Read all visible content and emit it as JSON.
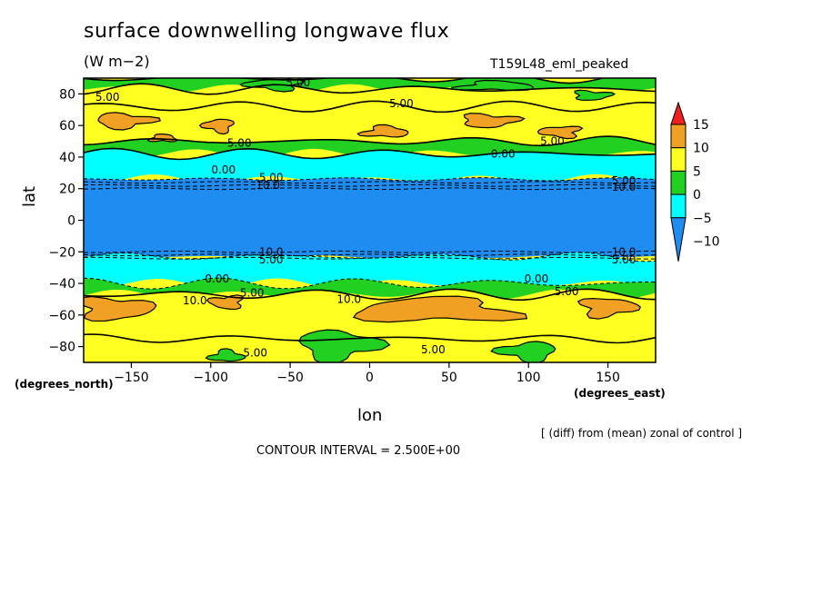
{
  "chart_data": {
    "type": "heatmap",
    "title": "surface downwelling longwave flux",
    "units": "(W m−2)",
    "run_id": "T159L48_eml_peaked",
    "xlabel": "lon",
    "ylabel": "lat",
    "x_unit_label": "(degrees_east)",
    "y_unit_label": "(degrees_north)",
    "xlim": [
      -180,
      180
    ],
    "ylim": [
      -90,
      90
    ],
    "x_ticks": [
      -150,
      -100,
      -50,
      0,
      50,
      100,
      150
    ],
    "y_ticks": [
      -80,
      -60,
      -40,
      -20,
      0,
      20,
      40,
      60,
      80
    ],
    "x_tick_labels": [
      "−150",
      "−100",
      "−50",
      "0",
      "50",
      "100",
      "150"
    ],
    "y_tick_labels": [
      "−80",
      "−60",
      "−40",
      "−20",
      "0",
      "20",
      "40",
      "60",
      "80"
    ],
    "colorbar": {
      "levels": [
        -10,
        -5,
        0,
        5,
        10,
        15
      ],
      "labels": [
        "−10",
        "−5",
        "0",
        "5",
        "10",
        "15"
      ],
      "colors": [
        "#1e8cf0",
        "#00ffff",
        "#22d022",
        "#ffff22",
        "#f0a022",
        "#f01e1e"
      ]
    },
    "zonal_bands": [
      {
        "lat_from": 83,
        "lat_to": 90,
        "value_range": "0 to 5"
      },
      {
        "lat_from": 72,
        "lat_to": 83,
        "value_range": "5 to 10"
      },
      {
        "lat_from": 50,
        "lat_to": 72,
        "value_range": "5 to 10 (patches 10 to 15)"
      },
      {
        "lat_from": 42,
        "lat_to": 50,
        "value_range": "0 to 5"
      },
      {
        "lat_from": 26,
        "lat_to": 42,
        "value_range": "-5 to 0"
      },
      {
        "lat_from": -23,
        "lat_to": 26,
        "value_range": "< -10"
      },
      {
        "lat_from": -40,
        "lat_to": -23,
        "value_range": "-5 to 0"
      },
      {
        "lat_from": -47,
        "lat_to": -40,
        "value_range": "0 to 5"
      },
      {
        "lat_from": -75,
        "lat_to": -47,
        "value_range": "5 to 10 (patches 10 to 15)"
      },
      {
        "lat_from": -90,
        "lat_to": -75,
        "value_range": "5 to 10 (patches 0 to 5)"
      }
    ],
    "contour_labels": [
      {
        "text": "5.00",
        "lon": -165,
        "lat": 78
      },
      {
        "text": "5.00",
        "lon": -45,
        "lat": 87
      },
      {
        "text": "5.00",
        "lon": 20,
        "lat": 74
      },
      {
        "text": "5.00",
        "lon": -82,
        "lat": 49
      },
      {
        "text": "5.00",
        "lon": 115,
        "lat": 50
      },
      {
        "text": "0.00",
        "lon": -92,
        "lat": 32
      },
      {
        "text": "0.00",
        "lon": 84,
        "lat": 42
      },
      {
        "text": "5.00",
        "lon": -62,
        "lat": 27
      },
      {
        "text": "10.0",
        "lon": -64,
        "lat": 22
      },
      {
        "text": "5.00",
        "lon": 160,
        "lat": 25
      },
      {
        "text": "10.0",
        "lon": 160,
        "lat": 21
      },
      {
        "text": "10.0",
        "lon": -62,
        "lat": -20
      },
      {
        "text": "5.00",
        "lon": -62,
        "lat": -25
      },
      {
        "text": "10.0",
        "lon": 160,
        "lat": -20
      },
      {
        "text": "5.00",
        "lon": 160,
        "lat": -25
      },
      {
        "text": "0.00",
        "lon": -96,
        "lat": -37
      },
      {
        "text": "0.00",
        "lon": 105,
        "lat": -37
      },
      {
        "text": "5.00",
        "lon": -74,
        "lat": -46
      },
      {
        "text": "5.00",
        "lon": 124,
        "lat": -45
      },
      {
        "text": "10.0",
        "lon": -110,
        "lat": -51
      },
      {
        "text": "10.0",
        "lon": -13,
        "lat": -50
      },
      {
        "text": "5.00",
        "lon": -72,
        "lat": -84
      },
      {
        "text": "5.00",
        "lon": 40,
        "lat": -82
      }
    ]
  },
  "annotations": {
    "note": "[ (diff) from (mean) zonal of control ]",
    "contour_interval": "CONTOUR INTERVAL = 2.500E+00"
  }
}
